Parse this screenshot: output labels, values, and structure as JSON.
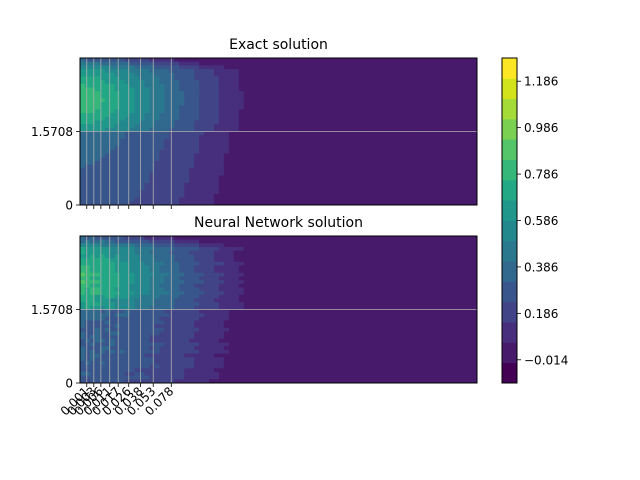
{
  "chart_data": [
    {
      "type": "heatmap",
      "title": "Exact solution",
      "x_ticks": [
        "0.001",
        "0.003",
        "0.006",
        "0.011",
        "0.017",
        "0.026",
        "0.038",
        "0.053",
        "0.078"
      ],
      "x_tick_values": [
        0.001,
        0.003,
        0.006,
        0.011,
        0.017,
        0.026,
        0.038,
        0.053,
        0.078
      ],
      "x_tick_labels_visible": false,
      "xlim": [
        0.0,
        0.082
      ],
      "y_ticks": [
        "0",
        "1.5708"
      ],
      "y_tick_values": [
        0,
        1.5708
      ],
      "ylim": [
        0,
        3.1416
      ],
      "grid": true,
      "field": "exact",
      "levels": [
        -0.114,
        -0.014,
        0.086,
        0.186,
        0.286,
        0.386,
        0.486,
        0.586,
        0.686,
        0.786,
        0.886,
        0.986,
        1.086,
        1.186,
        1.286
      ]
    },
    {
      "type": "heatmap",
      "title": "Neural Network solution",
      "x_ticks": [
        "0.001",
        "0.003",
        "0.006",
        "0.011",
        "0.017",
        "0.026",
        "0.038",
        "0.053",
        "0.078"
      ],
      "x_tick_values": [
        0.001,
        0.003,
        0.006,
        0.011,
        0.017,
        0.026,
        0.038,
        0.053,
        0.078
      ],
      "x_tick_labels_visible": true,
      "xlim": [
        0.0,
        0.082
      ],
      "y_ticks": [
        "0",
        "1.5708"
      ],
      "y_tick_values": [
        0,
        1.5708
      ],
      "ylim": [
        0,
        3.1416
      ],
      "grid": true,
      "field": "nn",
      "levels": [
        -0.114,
        -0.014,
        0.086,
        0.186,
        0.286,
        0.386,
        0.486,
        0.586,
        0.686,
        0.786,
        0.886,
        0.986,
        1.086,
        1.186,
        1.286
      ]
    }
  ],
  "colorbar": {
    "tick_labels": [
      "−0.014",
      "0.186",
      "0.386",
      "0.586",
      "0.786",
      "0.986",
      "1.186"
    ],
    "tick_values": [
      -0.014,
      0.186,
      0.386,
      0.586,
      0.786,
      0.986,
      1.186
    ],
    "range": [
      -0.114,
      1.286
    ],
    "colors": [
      "#440154",
      "#481a6c",
      "#472f7d",
      "#414487",
      "#39568c",
      "#31688e",
      "#2a788e",
      "#23888e",
      "#1f988b",
      "#22a884",
      "#35b779",
      "#54c568",
      "#7ad151",
      "#a5db36",
      "#d2e21b",
      "#fde725"
    ]
  }
}
